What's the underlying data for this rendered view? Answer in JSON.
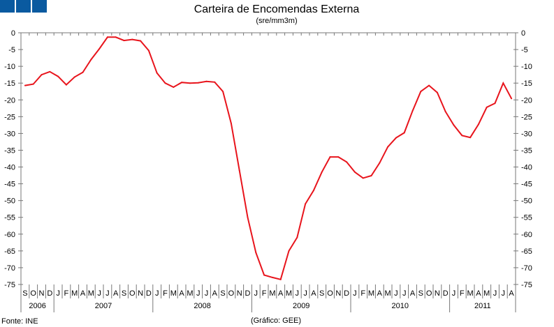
{
  "logo_color": "#0a5aa0",
  "chart_data": {
    "type": "line",
    "title": "Carteira de Encomendas Externa",
    "subtitle": "(sre/mm3m)",
    "source": "Fonte: INE",
    "credit": "(Gráfico: GEE)",
    "ylim": [
      -75,
      0
    ],
    "yticks": [
      0,
      -5,
      -10,
      -15,
      -20,
      -25,
      -30,
      -35,
      -40,
      -45,
      -50,
      -55,
      -60,
      -65,
      -70,
      -75
    ],
    "grid": false,
    "line_color": "#e8141c",
    "months": [
      "S",
      "O",
      "N",
      "D",
      "J",
      "F",
      "M",
      "A",
      "M",
      "J",
      "J",
      "A",
      "S",
      "O",
      "N",
      "D",
      "J",
      "F",
      "M",
      "A",
      "M",
      "J",
      "J",
      "A",
      "S",
      "O",
      "N",
      "D",
      "J",
      "F",
      "M",
      "A",
      "M",
      "J",
      "J",
      "A",
      "S",
      "O",
      "N",
      "D",
      "J",
      "F",
      "M",
      "A",
      "M",
      "J",
      "J",
      "A",
      "S",
      "O",
      "N",
      "D",
      "J",
      "F",
      "M",
      "A",
      "M",
      "J",
      "J",
      "A"
    ],
    "years": [
      {
        "label": "2006",
        "months": 4
      },
      {
        "label": "2007",
        "months": 12
      },
      {
        "label": "2008",
        "months": 12
      },
      {
        "label": "2009",
        "months": 12
      },
      {
        "label": "2010",
        "months": 12
      },
      {
        "label": "2011",
        "months": 8
      }
    ],
    "values": [
      -15.7,
      -15.3,
      -12.5,
      -11.6,
      -13,
      -15.5,
      -13.2,
      -11.8,
      -8,
      -4.8,
      -1.3,
      -1.3,
      -2.3,
      -2,
      -2.4,
      -5.3,
      -12,
      -15,
      -16.2,
      -14.8,
      -15,
      -14.9,
      -14.5,
      -14.7,
      -17.5,
      -27,
      -41,
      -55,
      -65.5,
      -72.2,
      -72.9,
      -73.5,
      -65,
      -61,
      -51,
      -47,
      -41.5,
      -37,
      -37,
      -38.5,
      -41.5,
      -43.3,
      -42.6,
      -38.8,
      -34,
      -31.3,
      -29.8,
      -23.3,
      -17.5,
      -15.7,
      -17.8,
      -23.5,
      -27.5,
      -30.6,
      -31.2,
      -27.3,
      -22.2,
      -21,
      -15,
      -19.6
    ]
  }
}
